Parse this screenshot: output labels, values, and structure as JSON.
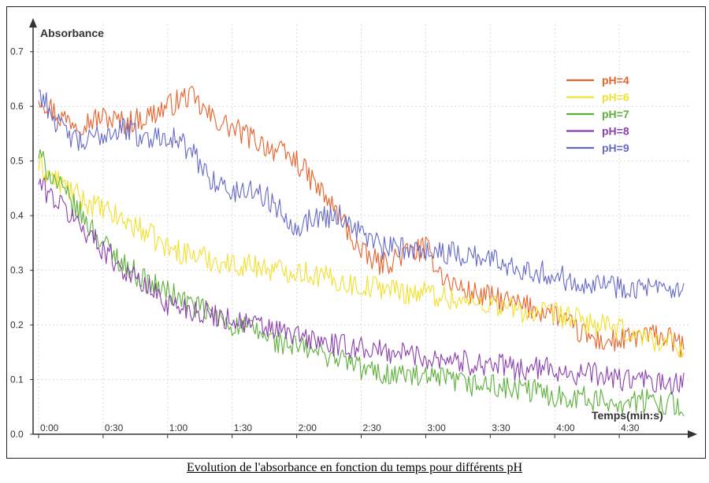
{
  "caption": "Evolution de l'absorbance en fonction du temps pour différents pH",
  "chart_data": {
    "type": "line",
    "title": "",
    "ylabel": "Absorbance",
    "xlabel": "Temps(min:s)",
    "xlim": [
      0,
      300
    ],
    "ylim": [
      0,
      0.75
    ],
    "x_ticks": [
      {
        "value": 0,
        "label": "0:00"
      },
      {
        "value": 30,
        "label": "0:30"
      },
      {
        "value": 60,
        "label": "1:00"
      },
      {
        "value": 90,
        "label": "1:30"
      },
      {
        "value": 120,
        "label": "2:00"
      },
      {
        "value": 150,
        "label": "2:30"
      },
      {
        "value": 180,
        "label": "3:00"
      },
      {
        "value": 210,
        "label": "3:30"
      },
      {
        "value": 240,
        "label": "4:00"
      },
      {
        "value": 270,
        "label": "4:30"
      }
    ],
    "y_ticks": [
      {
        "value": 0,
        "label": "0.0"
      },
      {
        "value": 0.1,
        "label": "0.1"
      },
      {
        "value": 0.2,
        "label": "0.2"
      },
      {
        "value": 0.3,
        "label": "0.3"
      },
      {
        "value": 0.4,
        "label": "0.4"
      },
      {
        "value": 0.5,
        "label": "0.5"
      },
      {
        "value": 0.6,
        "label": "0.6"
      },
      {
        "value": 0.7,
        "label": "0.7"
      }
    ],
    "grid": "horizontal-and-vertical-dotted",
    "legend_position": "top-right",
    "x": [
      0,
      10,
      20,
      30,
      40,
      50,
      60,
      70,
      80,
      90,
      100,
      110,
      120,
      130,
      140,
      150,
      160,
      170,
      180,
      190,
      200,
      210,
      220,
      230,
      240,
      250,
      260,
      270,
      280,
      290,
      300
    ],
    "series": [
      {
        "name": "pH=4",
        "color": "#e8622a",
        "values": [
          0.62,
          0.58,
          0.57,
          0.58,
          0.57,
          0.58,
          0.6,
          0.62,
          0.58,
          0.56,
          0.54,
          0.52,
          0.5,
          0.45,
          0.4,
          0.33,
          0.31,
          0.33,
          0.34,
          0.28,
          0.26,
          0.25,
          0.24,
          0.23,
          0.22,
          0.19,
          0.17,
          0.17,
          0.18,
          0.18,
          0.16
        ]
      },
      {
        "name": "pH=6",
        "color": "#f2e02a",
        "values": [
          0.49,
          0.46,
          0.43,
          0.41,
          0.39,
          0.37,
          0.34,
          0.33,
          0.32,
          0.31,
          0.31,
          0.3,
          0.3,
          0.29,
          0.28,
          0.27,
          0.27,
          0.26,
          0.26,
          0.25,
          0.24,
          0.24,
          0.23,
          0.22,
          0.22,
          0.21,
          0.2,
          0.19,
          0.18,
          0.17,
          0.16
        ]
      },
      {
        "name": "pH=7",
        "color": "#5cb03a",
        "values": [
          0.51,
          0.45,
          0.4,
          0.35,
          0.31,
          0.28,
          0.26,
          0.24,
          0.22,
          0.2,
          0.19,
          0.17,
          0.16,
          0.15,
          0.14,
          0.12,
          0.11,
          0.11,
          0.1,
          0.1,
          0.09,
          0.09,
          0.08,
          0.08,
          0.07,
          0.07,
          0.06,
          0.06,
          0.06,
          0.06,
          0.05
        ]
      },
      {
        "name": "pH=8",
        "color": "#8a3fae",
        "values": [
          0.46,
          0.42,
          0.38,
          0.34,
          0.3,
          0.27,
          0.24,
          0.23,
          0.22,
          0.21,
          0.2,
          0.19,
          0.18,
          0.17,
          0.16,
          0.16,
          0.15,
          0.15,
          0.14,
          0.14,
          0.13,
          0.13,
          0.12,
          0.12,
          0.12,
          0.11,
          0.11,
          0.1,
          0.1,
          0.09,
          0.09
        ]
      },
      {
        "name": "pH=9",
        "color": "#6469c7",
        "values": [
          0.63,
          0.56,
          0.53,
          0.55,
          0.56,
          0.54,
          0.55,
          0.52,
          0.47,
          0.44,
          0.45,
          0.42,
          0.38,
          0.4,
          0.4,
          0.37,
          0.34,
          0.34,
          0.34,
          0.33,
          0.33,
          0.32,
          0.31,
          0.3,
          0.29,
          0.28,
          0.28,
          0.27,
          0.27,
          0.26,
          0.26
        ]
      }
    ]
  }
}
